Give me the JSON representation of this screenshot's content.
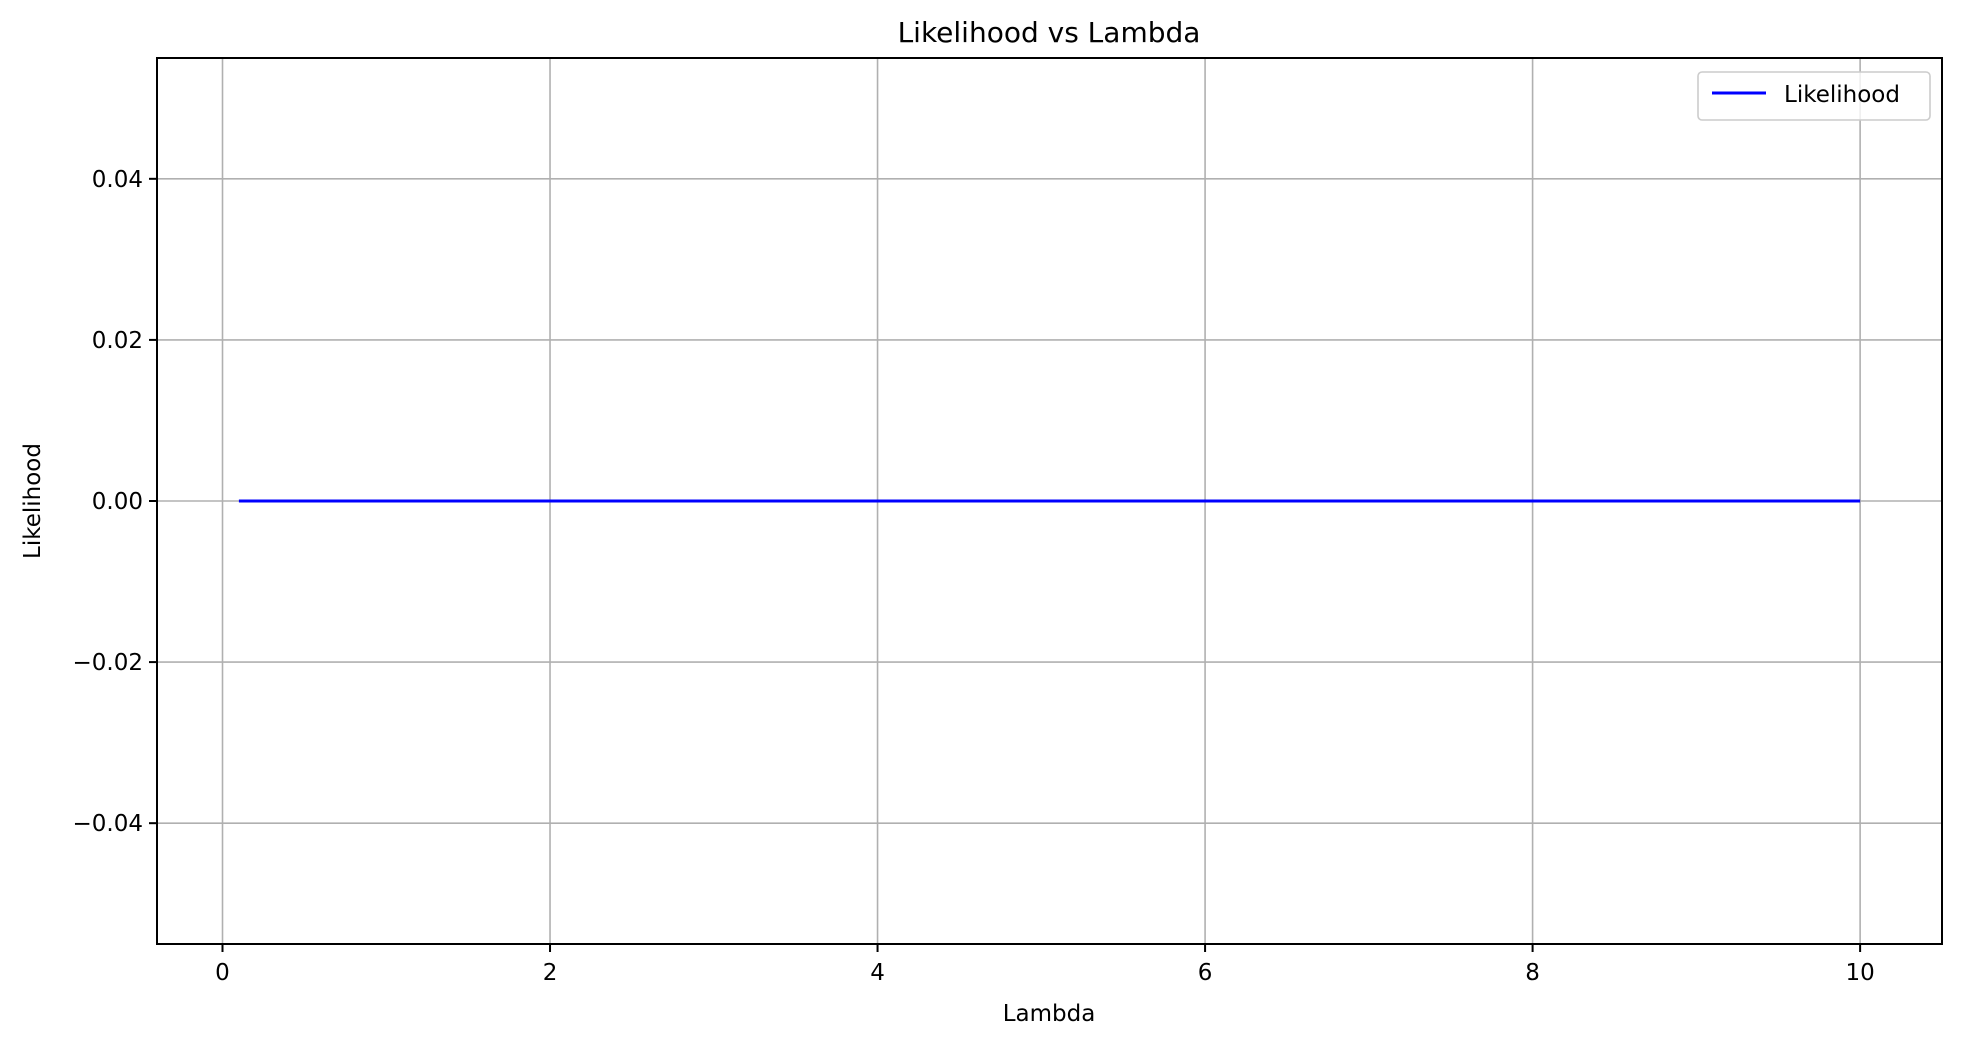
{
  "chart_data": {
    "type": "line",
    "title": "Likelihood vs Lambda",
    "xlabel": "Lambda",
    "ylabel": "Likelihood",
    "xlim": [
      -0.4,
      10.5
    ],
    "ylim": [
      -0.055,
      0.055
    ],
    "xticks": [
      0,
      2,
      4,
      6,
      8,
      10
    ],
    "xtick_labels": [
      "0",
      "2",
      "4",
      "6",
      "8",
      "10"
    ],
    "yticks": [
      -0.04,
      -0.02,
      0.0,
      0.02,
      0.04
    ],
    "ytick_labels": [
      "−0.04",
      "−0.02",
      "0.00",
      "0.02",
      "0.04"
    ],
    "grid": true,
    "legend_position": "top-right",
    "series": [
      {
        "name": "Likelihood",
        "color": "#0000ff",
        "x": [
          0.1,
          1,
          2,
          3,
          4,
          5,
          6,
          7,
          8,
          9,
          10
        ],
        "y": [
          0,
          0,
          0,
          0,
          0,
          0,
          0,
          0,
          0,
          0,
          0
        ]
      }
    ]
  }
}
